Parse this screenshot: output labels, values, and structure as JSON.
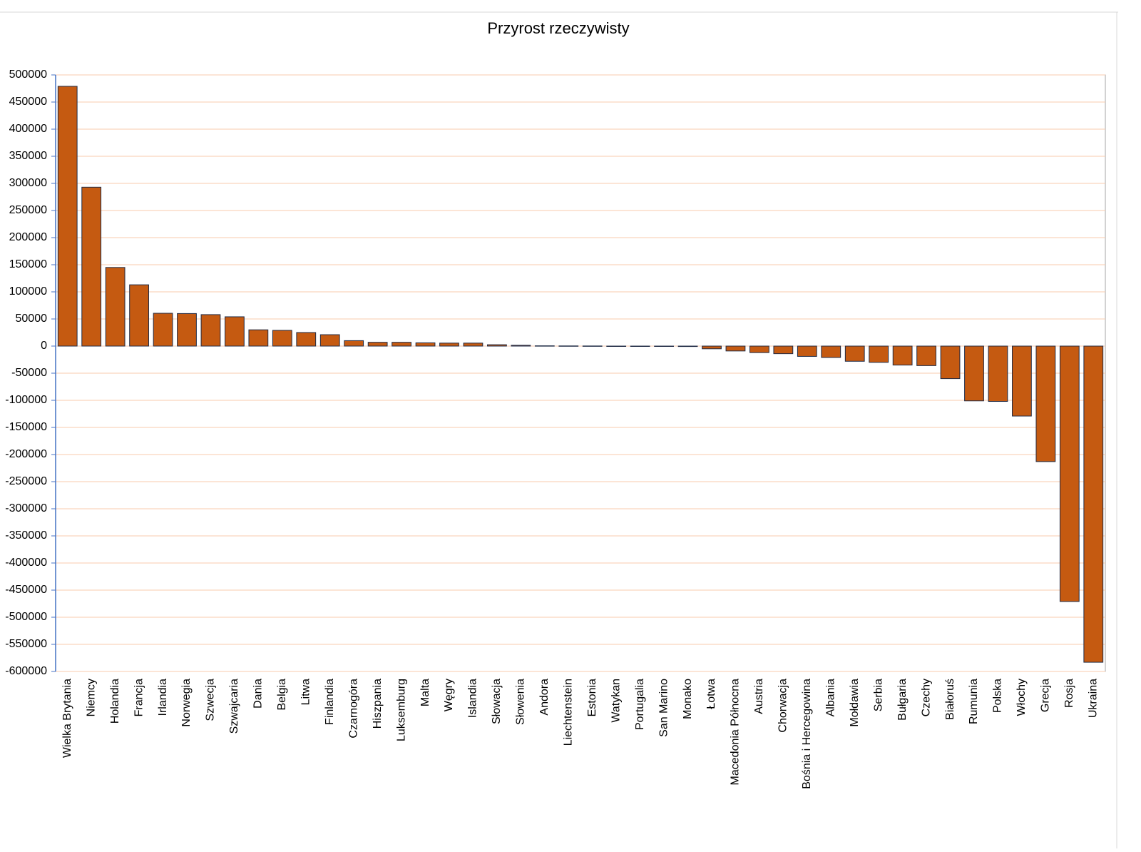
{
  "chart_data": {
    "type": "bar",
    "title": "Przyrost rzeczywisty",
    "categories": [
      "Wielka Brytania",
      "Niemcy",
      "Holandia",
      "Francja",
      "Irlandia",
      "Norwegia",
      "Szwecja",
      "Szwajcaria",
      "Dania",
      "Belgia",
      "Litwa",
      "Finlandia",
      "Czarnogóra",
      "Hiszpania",
      "Luksemburg",
      "Malta",
      "Węgry",
      "Islandia",
      "Słowacja",
      "Słowenia",
      "Andora",
      "Liechtenstein",
      "Estonia",
      "Watykan",
      "Portugalia",
      "San Marino",
      "Monako",
      "Łotwa",
      "Macedonia Północna",
      "Austria",
      "Chorwacja",
      "Bośnia i Hercegowina",
      "Albania",
      "Mołdawia",
      "Serbia",
      "Bułgaria",
      "Czechy",
      "Białoruś",
      "Rumunia",
      "Polska",
      "Włochy",
      "Grecja",
      "Rosja",
      "Ukraina"
    ],
    "values": [
      479000,
      293000,
      145000,
      113000,
      60500,
      60000,
      58000,
      54000,
      30000,
      29000,
      25000,
      21000,
      10000,
      7000,
      7000,
      6000,
      5500,
      5500,
      2500,
      1500,
      500,
      300,
      200,
      -300,
      -500,
      -600,
      -800,
      -5000,
      -9000,
      -12000,
      -14000,
      -19000,
      -21000,
      -28000,
      -30000,
      -35000,
      -36000,
      -60000,
      -101000,
      -102000,
      -129000,
      -213000,
      -471000,
      -583000
    ],
    "color": "#c55a11",
    "ylim": [
      -600000,
      500000
    ],
    "yticks": [
      500000,
      450000,
      400000,
      350000,
      300000,
      250000,
      200000,
      150000,
      100000,
      50000,
      0,
      -50000,
      -100000,
      -150000,
      -200000,
      -250000,
      -300000,
      -350000,
      -400000,
      -450000,
      -500000,
      -550000,
      -600000
    ],
    "grid": true
  }
}
